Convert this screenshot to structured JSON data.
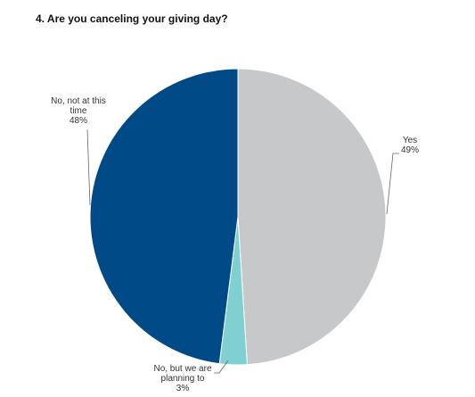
{
  "chart_data": {
    "type": "pie",
    "title": "4.  Are you canceling your giving day?",
    "categories": [
      "Yes",
      "No, but we are planning to",
      "No, not at this time"
    ],
    "values": [
      49,
      3,
      48
    ],
    "value_labels": [
      "49%",
      "3%",
      "48%"
    ],
    "colors": [
      "#c6c8ca",
      "#7fd1d1",
      "#004b87"
    ]
  }
}
